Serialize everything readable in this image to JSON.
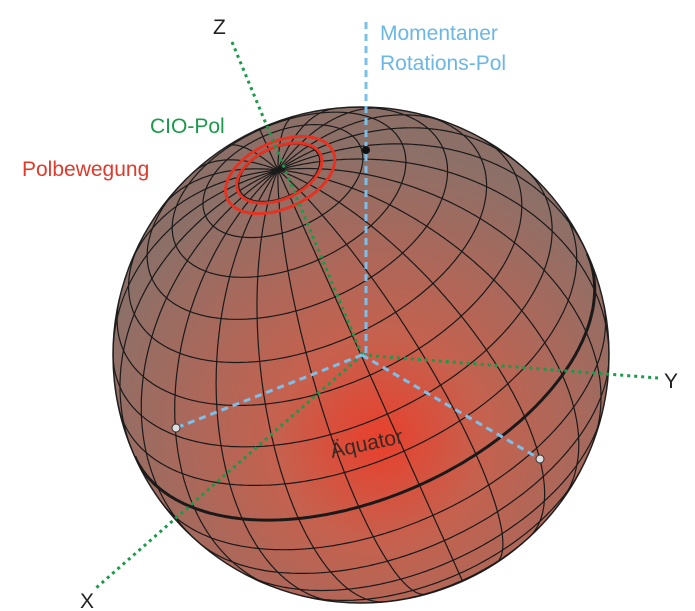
{
  "labels": {
    "z_axis": "Z",
    "rotation_pole": [
      "Momentaner",
      "Rotations-Pol"
    ],
    "cio_pole": "CIO-Pol",
    "polar_motion": "Polbewegung",
    "equator": "Äquator",
    "y_axis": "Y",
    "x_axis": "X"
  }
}
